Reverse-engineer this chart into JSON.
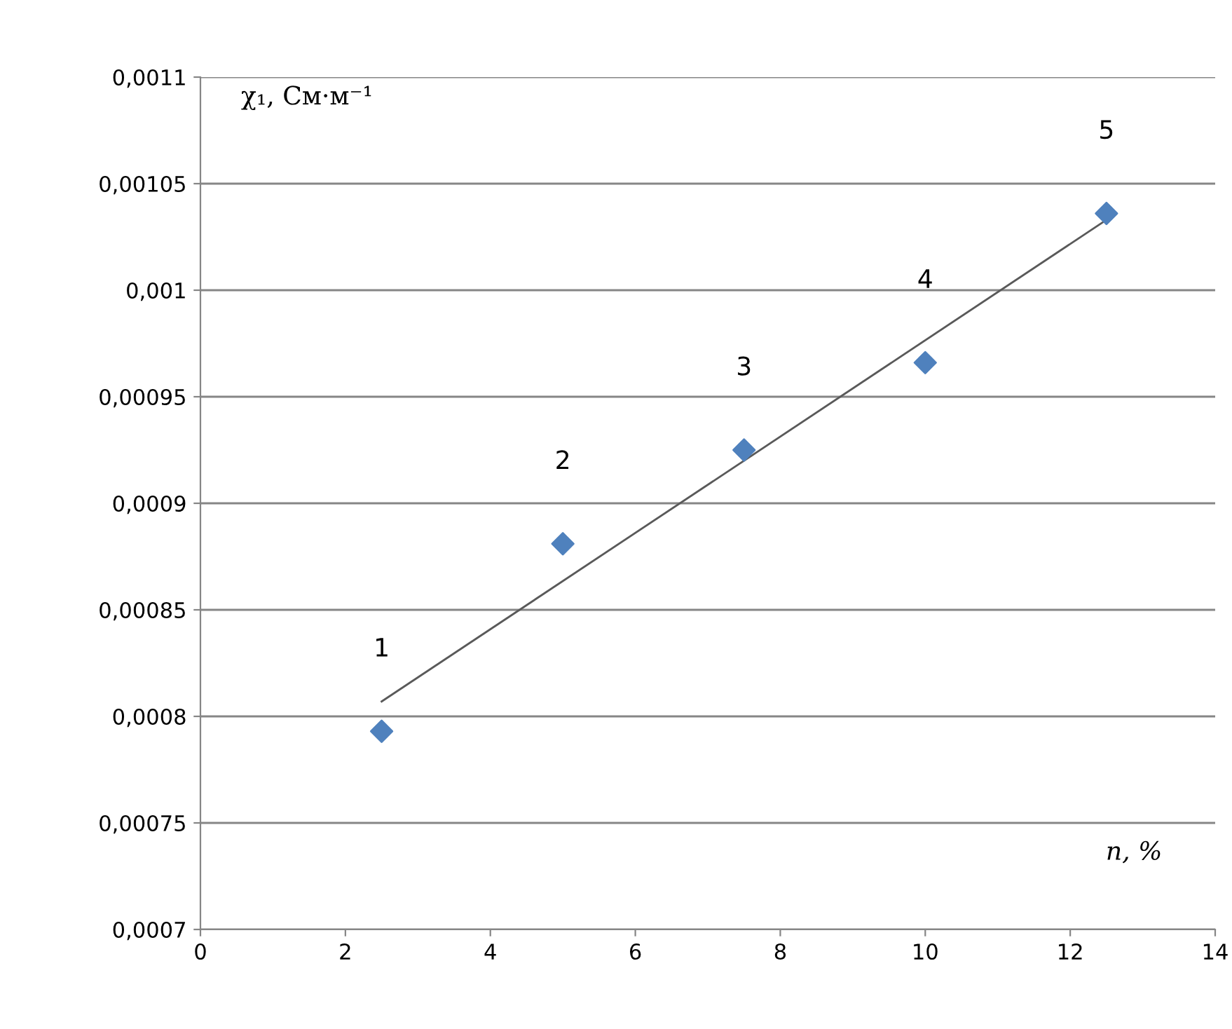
{
  "chart_data": {
    "type": "scatter",
    "xlabel": "n, %",
    "ylabel": "χ₁, См·м⁻¹",
    "x": [
      2.5,
      5,
      7.5,
      10,
      12.5
    ],
    "series": [
      {
        "color": "#4f81bd",
        "marker": "diamond",
        "values": [
          0.000793,
          0.000881,
          0.000925,
          0.000966,
          0.001036
        ]
      },
      {
        "type": "line",
        "color": "#595959",
        "marker": "none",
        "x": [
          2.5,
          12.5
        ],
        "values": [
          0.000807,
          0.001033
        ]
      }
    ],
    "xlim": [
      0,
      14
    ],
    "xticks": [
      0,
      2,
      4,
      6,
      8,
      10,
      12,
      14
    ],
    "ylim": [
      0.0007,
      0.0011
    ],
    "yticks": [
      {
        "value": 0.0007,
        "label": "0,0007"
      },
      {
        "value": 0.00075,
        "label": "0,00075"
      },
      {
        "value": 0.0008,
        "label": "0,0008"
      },
      {
        "value": 0.00085,
        "label": "0,00085"
      },
      {
        "value": 0.0009,
        "label": "0,0009"
      },
      {
        "value": 0.00095,
        "label": "0,00095"
      },
      {
        "value": 0.001,
        "label": "0,001"
      },
      {
        "value": 0.00105,
        "label": "0,00105"
      },
      {
        "value": 0.0011,
        "label": "0,0011"
      }
    ],
    "grid": "y",
    "annotations": [
      {
        "text": "1",
        "x": 2.5,
        "y": 0.000793
      },
      {
        "text": "2",
        "x": 5,
        "y": 0.000881
      },
      {
        "text": "3",
        "x": 7.5,
        "y": 0.000925
      },
      {
        "text": "4",
        "x": 10,
        "y": 0.000966
      },
      {
        "text": "5",
        "x": 12.5,
        "y": 0.001036
      }
    ]
  }
}
